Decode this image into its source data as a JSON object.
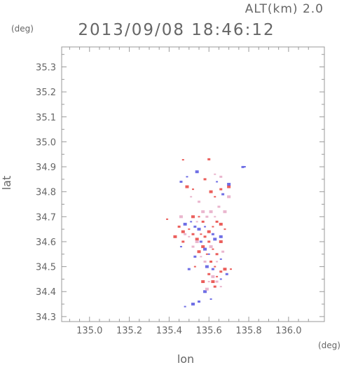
{
  "header": {
    "alt_label": "ALT(km)  2.0",
    "timestamp": "2013/09/08 18:46:12"
  },
  "colors": {
    "frame": "#9a9a9a",
    "positive": "#e8433f",
    "negative": "#5656e0",
    "text": "#666666"
  },
  "chart_data": {
    "type": "scatter",
    "title": "2013/09/08 18:46:12",
    "xlabel": "lon",
    "ylabel": "lat",
    "x_unit": "(deg)",
    "y_unit": "(deg)",
    "xlim": [
      134.86,
      136.18
    ],
    "ylim": [
      34.28,
      35.38
    ],
    "x_ticks": [
      135.0,
      135.2,
      135.4,
      135.6,
      135.8,
      136.0
    ],
    "y_ticks": [
      34.3,
      34.4,
      34.5,
      34.6,
      34.7,
      34.8,
      34.9,
      35.0,
      35.1,
      35.2,
      35.3
    ],
    "x_tick_labels": [
      "135.0",
      "135.2",
      "135.4",
      "135.6",
      "135.8",
      "136.0"
    ],
    "y_tick_labels": [
      "34.3",
      "34.4",
      "34.5",
      "34.6",
      "34.7",
      "34.8",
      "34.9",
      "35.0",
      "35.1",
      "35.2",
      "35.3"
    ],
    "grid": false,
    "series": [
      {
        "color": "#e8433f",
        "points": [
          [
            135.47,
            34.928
          ],
          [
            135.6,
            34.93
          ],
          [
            135.49,
            34.82
          ],
          [
            135.52,
            34.81
          ],
          [
            135.58,
            34.85
          ],
          [
            135.61,
            34.8
          ],
          [
            135.63,
            34.78
          ],
          [
            135.66,
            34.81
          ],
          [
            135.7,
            34.82
          ],
          [
            135.39,
            34.69
          ],
          [
            135.45,
            34.66
          ],
          [
            135.47,
            34.64
          ],
          [
            135.5,
            34.65
          ],
          [
            135.52,
            34.63
          ],
          [
            135.52,
            34.7
          ],
          [
            135.55,
            34.7
          ],
          [
            135.57,
            34.68
          ],
          [
            135.54,
            34.61
          ],
          [
            135.56,
            34.63
          ],
          [
            135.58,
            34.62
          ],
          [
            135.6,
            34.64
          ],
          [
            135.62,
            34.66
          ],
          [
            135.64,
            34.68
          ],
          [
            135.66,
            34.67
          ],
          [
            135.68,
            34.65
          ],
          [
            135.6,
            34.6
          ],
          [
            135.57,
            34.58
          ],
          [
            135.59,
            34.55
          ],
          [
            135.61,
            34.52
          ],
          [
            135.55,
            34.56
          ],
          [
            135.62,
            34.57
          ],
          [
            135.64,
            34.55
          ],
          [
            135.66,
            34.6
          ],
          [
            135.63,
            34.5
          ],
          [
            135.6,
            34.47
          ],
          [
            135.62,
            34.44
          ],
          [
            135.64,
            34.46
          ],
          [
            135.66,
            34.48
          ],
          [
            135.68,
            34.49
          ],
          [
            135.71,
            34.49
          ],
          [
            135.63,
            34.42
          ],
          [
            135.57,
            34.44
          ],
          [
            135.53,
            34.5
          ],
          [
            135.47,
            34.6
          ],
          [
            135.43,
            34.62
          ]
        ]
      },
      {
        "color": "#5656e0",
        "points": [
          [
            135.49,
            34.86
          ],
          [
            135.46,
            34.84
          ],
          [
            135.54,
            34.88
          ],
          [
            135.64,
            34.84
          ],
          [
            135.67,
            34.79
          ],
          [
            135.7,
            34.83
          ],
          [
            135.78,
            34.9
          ],
          [
            135.77,
            34.899
          ],
          [
            135.48,
            34.67
          ],
          [
            135.51,
            34.68
          ],
          [
            135.53,
            34.66
          ],
          [
            135.55,
            34.65
          ],
          [
            135.58,
            34.66
          ],
          [
            135.62,
            34.63
          ],
          [
            135.63,
            34.61
          ],
          [
            135.46,
            34.58
          ],
          [
            135.56,
            34.6
          ],
          [
            135.58,
            34.57
          ],
          [
            135.6,
            34.55
          ],
          [
            135.53,
            34.54
          ],
          [
            135.66,
            34.62
          ],
          [
            135.66,
            34.53
          ],
          [
            135.62,
            34.49
          ],
          [
            135.59,
            34.5
          ],
          [
            135.66,
            34.45
          ],
          [
            135.69,
            34.47
          ],
          [
            135.58,
            34.4
          ],
          [
            135.61,
            34.37
          ],
          [
            135.55,
            34.36
          ],
          [
            135.52,
            34.35
          ],
          [
            135.48,
            34.34
          ],
          [
            135.5,
            34.49
          ]
        ]
      },
      {
        "color": "#e6a9c6",
        "points": [
          [
            135.51,
            34.78
          ],
          [
            135.55,
            34.76
          ],
          [
            135.57,
            34.72
          ],
          [
            135.54,
            34.68
          ],
          [
            135.59,
            34.7
          ],
          [
            135.61,
            34.72
          ],
          [
            135.63,
            34.7
          ],
          [
            135.65,
            34.74
          ],
          [
            135.68,
            34.72
          ],
          [
            135.5,
            34.62
          ],
          [
            135.52,
            34.58
          ],
          [
            135.54,
            34.6
          ],
          [
            135.56,
            34.54
          ],
          [
            135.58,
            34.52
          ],
          [
            135.61,
            34.58
          ],
          [
            135.64,
            34.52
          ],
          [
            135.67,
            34.56
          ],
          [
            135.62,
            34.46
          ],
          [
            135.6,
            34.44
          ],
          [
            135.64,
            34.44
          ],
          [
            135.59,
            34.41
          ],
          [
            135.66,
            34.42
          ],
          [
            135.48,
            34.63
          ],
          [
            135.46,
            34.7
          ],
          [
            135.63,
            34.87
          ],
          [
            135.66,
            34.86
          ],
          [
            135.7,
            34.78
          ]
        ]
      }
    ]
  }
}
